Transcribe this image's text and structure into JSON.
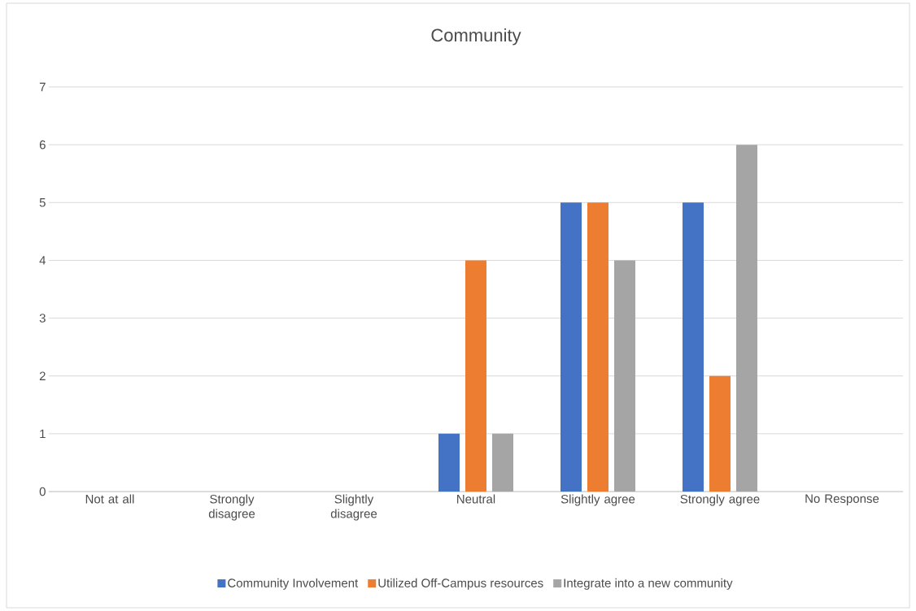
{
  "chart_data": {
    "type": "bar",
    "title": "Community",
    "categories": [
      "Not at all",
      "Strongly disagree",
      "Slightly disagree",
      "Neutral",
      "Slightly agree",
      "Strongly agree",
      "No Response"
    ],
    "series": [
      {
        "name": "Community Involvement",
        "color": "#4472c4",
        "values": [
          0,
          0,
          0,
          1,
          5,
          5,
          0
        ]
      },
      {
        "name": "Utilized Off-Campus resources",
        "color": "#ed7d31",
        "values": [
          0,
          0,
          0,
          4,
          5,
          2,
          0
        ]
      },
      {
        "name": "Integrate into a new community",
        "color": "#a5a5a5",
        "values": [
          0,
          0,
          0,
          1,
          4,
          6,
          0
        ]
      }
    ],
    "ylim": [
      0,
      7
    ],
    "yticks": [
      0,
      1,
      2,
      3,
      4,
      5,
      6,
      7
    ],
    "grid": "y",
    "legend": "bottom"
  }
}
